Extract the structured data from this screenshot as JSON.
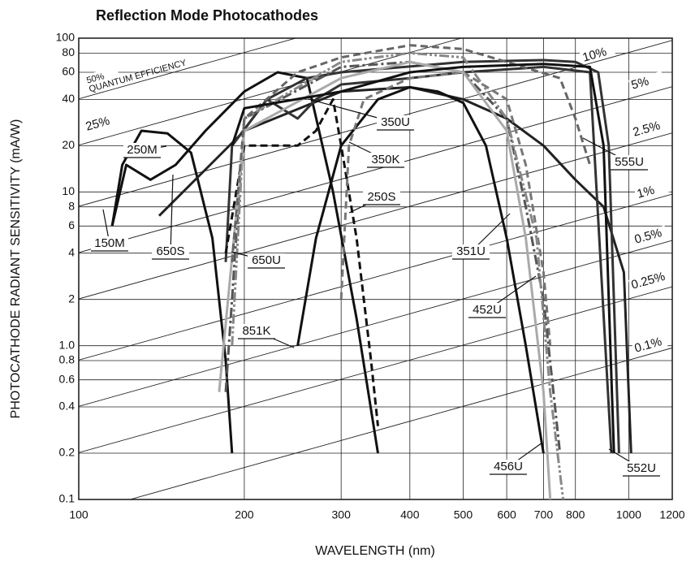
{
  "chart_data": {
    "type": "line",
    "title": "Reflection Mode Photocathodes",
    "xlabel": "WAVELENGTH (nm)",
    "ylabel": "PHOTOCATHODE RADIANT SENSITIVITY (mA/W)",
    "xscale": "log",
    "yscale": "log",
    "grid": true,
    "xlim": [
      100,
      1200
    ],
    "xticks": [
      100,
      200,
      300,
      400,
      500,
      600,
      700,
      800,
      1000,
      1200
    ],
    "ylim": [
      0.1,
      100
    ],
    "yticks": [
      0.1,
      0.2,
      0.4,
      0.6,
      0.8,
      {
        "value": 1,
        "label": "1.0"
      },
      2,
      4,
      6,
      8,
      10,
      20,
      40,
      60,
      80,
      100
    ],
    "qe_annotation": "QUANTUM EFFICIENCY",
    "qe_lines": [
      {
        "value": 50,
        "label": "50%"
      },
      {
        "value": 25,
        "label": "25%"
      },
      {
        "value": 10,
        "label": "10%"
      },
      {
        "value": 5,
        "label": "5%"
      },
      {
        "value": 2.5,
        "label": "2.5%"
      },
      {
        "value": 1,
        "label": "1%"
      },
      {
        "value": 0.5,
        "label": "0.5%"
      },
      {
        "value": 0.25,
        "label": "0.25%"
      },
      {
        "value": 0.1,
        "label": "0.1%"
      }
    ],
    "series": [
      {
        "name": "150M",
        "color": "#111111",
        "dash": "solid",
        "x": [
          115,
          122,
          135,
          150,
          170,
          200,
          230,
          260,
          290,
          320,
          350
        ],
        "values": [
          6,
          15,
          12,
          15,
          25,
          45,
          60,
          55,
          10,
          1.5,
          0.2
        ]
      },
      {
        "name": "250M",
        "color": "#111111",
        "dash": "solid",
        "x": [
          115,
          120,
          130,
          145,
          160,
          175,
          185,
          190
        ],
        "values": [
          6,
          15,
          25,
          24,
          18,
          5,
          0.8,
          0.2
        ]
      },
      {
        "name": "650S",
        "color": "#222222",
        "dash": "solid",
        "x": [
          140,
          200,
          300,
          400,
          500,
          600,
          700,
          800,
          900,
          980,
          1010
        ],
        "values": [
          7,
          25,
          45,
          48,
          40,
          30,
          20,
          12,
          8,
          3,
          0.2
        ]
      },
      {
        "name": "650U",
        "color": "#333333",
        "dash": "solid",
        "x": [
          185,
          190,
          220,
          260,
          300,
          500,
          700,
          800,
          880,
          920,
          960
        ],
        "values": [
          3.5,
          20,
          40,
          55,
          60,
          70,
          72,
          70,
          60,
          20,
          0.2
        ]
      },
      {
        "name": "851K",
        "color": "#111111",
        "dash": "solid",
        "x": [
          250,
          270,
          300,
          350,
          400,
          450,
          500,
          550,
          600,
          650,
          700
        ],
        "values": [
          1,
          5,
          20,
          40,
          48,
          45,
          38,
          20,
          5,
          1,
          0.2
        ]
      },
      {
        "name": "350U",
        "color": "#333333",
        "dash": "solid",
        "x": [
          190,
          220,
          250,
          270,
          300,
          400,
          500,
          700,
          850,
          930
        ],
        "values": [
          20,
          40,
          30,
          40,
          50,
          55,
          60,
          65,
          60,
          0.2
        ]
      },
      {
        "name": "350K",
        "color": "#111111",
        "dash": "dash",
        "x": [
          185,
          200,
          250,
          270,
          290,
          300,
          320,
          340,
          350
        ],
        "values": [
          4,
          20,
          20,
          25,
          40,
          20,
          5,
          0.8,
          0.3
        ]
      },
      {
        "name": "250S",
        "color": "#777777",
        "dash": "dash",
        "x": [
          300,
          310,
          330,
          400,
          500,
          600,
          650,
          700,
          720
        ],
        "values": [
          2,
          20,
          40,
          55,
          60,
          40,
          15,
          3,
          1
        ]
      },
      {
        "name": "351U",
        "color": "#555555",
        "dash": "dashdot",
        "x": [
          185,
          200,
          300,
          400,
          500,
          600,
          650,
          700,
          750
        ],
        "values": [
          0.5,
          30,
          65,
          70,
          60,
          30,
          8,
          2,
          0.2
        ]
      },
      {
        "name": "452U",
        "color": "#888888",
        "dash": "dashdotdot",
        "x": [
          190,
          200,
          300,
          400,
          500,
          600,
          680,
          720,
          760
        ],
        "values": [
          1,
          30,
          70,
          80,
          75,
          30,
          5,
          0.5,
          0.1
        ]
      },
      {
        "name": "456U",
        "color": "#aaaaaa",
        "dash": "solid",
        "x": [
          180,
          200,
          300,
          400,
          500,
          600,
          650,
          700,
          720
        ],
        "values": [
          0.5,
          25,
          55,
          70,
          60,
          25,
          5,
          0.5,
          0.1
        ]
      },
      {
        "name": "555U",
        "color": "#666666",
        "dash": "dash",
        "x": [
          190,
          200,
          250,
          300,
          400,
          500,
          600,
          750,
          800,
          850
        ],
        "values": [
          3.5,
          30,
          60,
          75,
          90,
          85,
          70,
          55,
          30,
          15
        ]
      },
      {
        "name": "552U",
        "color": "#111111",
        "dash": "solid",
        "x": [
          190,
          200,
          300,
          400,
          500,
          700,
          850,
          900,
          940
        ],
        "values": [
          20,
          35,
          45,
          60,
          65,
          68,
          65,
          20,
          0.2
        ]
      }
    ]
  }
}
